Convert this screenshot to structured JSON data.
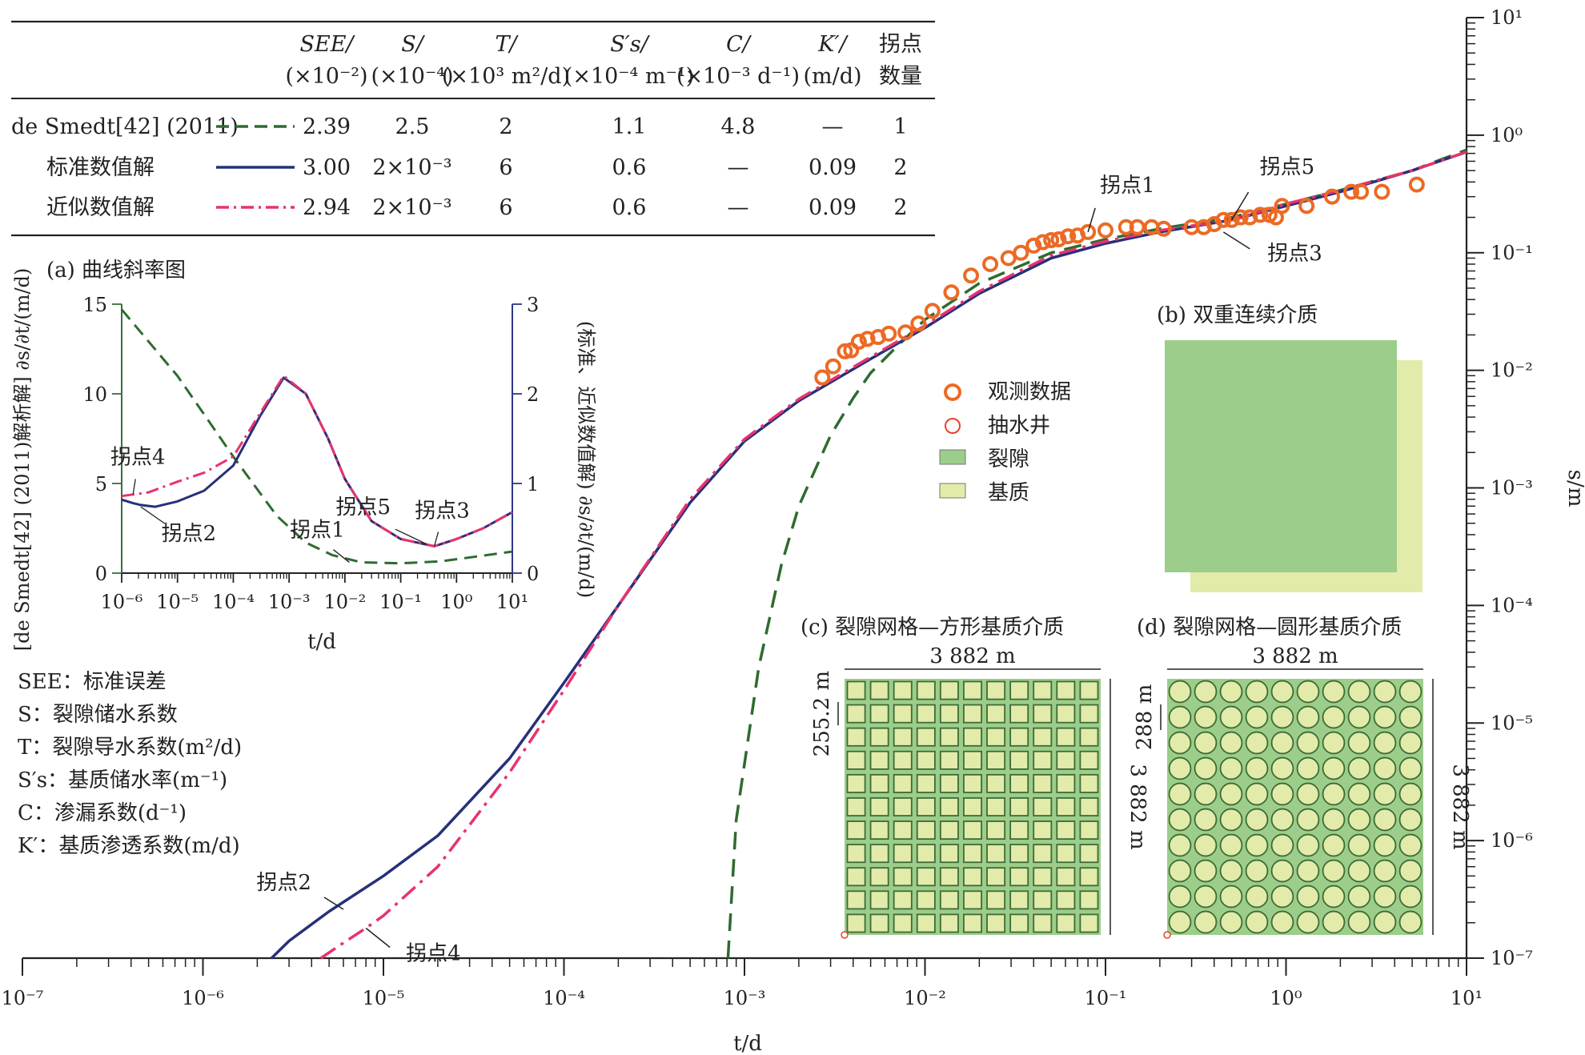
{
  "colors": {
    "desmedt": "#2e6b30",
    "standard": "#27307a",
    "approx": "#e8326e",
    "observed": "#ec6a24",
    "well": "#e8422a",
    "fracture": "#9ccd8a",
    "matrix": "#e3ebaa",
    "red_text": "#d8262b",
    "left_axis": "#3b6e3a",
    "right_axis": "#2d3785"
  },
  "table": {
    "headers": [
      {
        "l1": "SEE/",
        "l2": "(×10⁻²)"
      },
      {
        "l1": "S/",
        "l2": "(×10⁻⁴)"
      },
      {
        "l1": "T/",
        "l2": "(×10³ m²/d)"
      },
      {
        "l1": "S′s/",
        "l2": "(×10⁻⁴ m⁻¹)"
      },
      {
        "l1": "C/",
        "l2": "(×10⁻³ d⁻¹)"
      },
      {
        "l1": "K′/",
        "l2": "(m/d)"
      },
      {
        "l1": "拐点",
        "l2": "数量"
      }
    ],
    "rows": [
      {
        "name": "de Smedt[42] (2011)",
        "cells": [
          "2.39",
          "2.5",
          "2",
          "1.1",
          "4.8",
          "—",
          "1"
        ]
      },
      {
        "name": "标准数值解",
        "cells": [
          "3.00",
          "2×10⁻³",
          "6",
          "0.6",
          "—",
          "0.09",
          "2"
        ]
      },
      {
        "name": "近似数值解",
        "cells": [
          "2.94",
          "2×10⁻³",
          "6",
          "0.6",
          "—",
          "0.09",
          "2"
        ]
      }
    ]
  },
  "chart_data": [
    {
      "id": "main",
      "type": "line",
      "x_scale": "log",
      "y_scale": "log",
      "xlabel": "t/d",
      "ylabel": "s/m",
      "xlim": [
        1e-07,
        10
      ],
      "ylim": [
        1e-07,
        10
      ],
      "x_ticks": [
        "10⁻⁷",
        "10⁻⁶",
        "10⁻⁵",
        "10⁻⁴",
        "10⁻³",
        "10⁻²",
        "10⁻¹",
        "10⁰",
        "10¹"
      ],
      "y_ticks": [
        "10⁻⁷",
        "10⁻⁶",
        "10⁻⁵",
        "10⁻⁴",
        "10⁻³",
        "10⁻²",
        "10⁻¹",
        "10⁰",
        "10¹"
      ],
      "series": [
        {
          "name": "de Smedt[42] (2011)",
          "style": "dashed",
          "x": [
            0.00081,
            0.0009,
            0.0012,
            0.0016,
            0.002,
            0.003,
            0.004,
            0.005,
            0.007,
            0.01,
            0.02,
            0.05,
            0.1,
            0.2,
            0.5,
            1,
            2,
            5,
            10
          ],
          "y": [
            1e-07,
            1.5e-06,
            3e-05,
            0.00022,
            0.0007,
            0.0028,
            0.0058,
            0.0095,
            0.016,
            0.027,
            0.055,
            0.1,
            0.13,
            0.16,
            0.2,
            0.26,
            0.34,
            0.5,
            0.75
          ]
        },
        {
          "name": "标准数值解",
          "style": "solid",
          "x": [
            2.4e-06,
            3e-06,
            5e-06,
            1e-05,
            2e-05,
            5e-05,
            0.0001,
            0.0002,
            0.0005,
            0.001,
            0.002,
            0.005,
            0.01,
            0.02,
            0.05,
            0.1,
            0.2,
            0.5,
            1,
            2,
            5,
            10
          ],
          "y": [
            1e-07,
            1.4e-07,
            2.5e-07,
            5e-07,
            1.1e-06,
            5e-06,
            2.2e-05,
            0.0001,
            0.00075,
            0.0025,
            0.0055,
            0.0125,
            0.023,
            0.045,
            0.09,
            0.12,
            0.15,
            0.19,
            0.25,
            0.33,
            0.5,
            0.72
          ]
        },
        {
          "name": "近似数值解",
          "style": "dashdot",
          "x": [
            4.5e-06,
            6e-06,
            8e-06,
            1e-05,
            2e-05,
            5e-05,
            0.0001,
            0.0002,
            0.0005,
            0.001,
            0.002,
            0.005,
            0.01,
            0.02,
            0.05,
            0.1,
            0.2,
            0.5,
            1,
            2,
            5,
            10
          ],
          "y": [
            1e-07,
            1.35e-07,
            1.8e-07,
            2.3e-07,
            6e-07,
            3.8e-06,
            1.9e-05,
            0.0001,
            0.0008,
            0.0026,
            0.0057,
            0.013,
            0.024,
            0.047,
            0.095,
            0.125,
            0.155,
            0.19,
            0.26,
            0.34,
            0.5,
            0.72
          ]
        },
        {
          "name": "观测数据",
          "style": "markers",
          "x": [
            0.0027,
            0.0031,
            0.0036,
            0.0039,
            0.0043,
            0.0048,
            0.0055,
            0.0063,
            0.0078,
            0.0092,
            0.011,
            0.014,
            0.018,
            0.023,
            0.029,
            0.034,
            0.04,
            0.045,
            0.05,
            0.055,
            0.062,
            0.07,
            0.08,
            0.1,
            0.13,
            0.15,
            0.18,
            0.21,
            0.3,
            0.35,
            0.4,
            0.45,
            0.5,
            0.56,
            0.63,
            0.72,
            0.81,
            0.88,
            0.95,
            1.3,
            1.8,
            2.3,
            2.6,
            3.4,
            5.3
          ],
          "y": [
            0.0087,
            0.0108,
            0.0145,
            0.0148,
            0.0175,
            0.0185,
            0.0192,
            0.0205,
            0.021,
            0.025,
            0.032,
            0.046,
            0.064,
            0.08,
            0.09,
            0.1,
            0.115,
            0.123,
            0.128,
            0.13,
            0.138,
            0.14,
            0.15,
            0.155,
            0.165,
            0.165,
            0.165,
            0.16,
            0.165,
            0.165,
            0.175,
            0.19,
            0.19,
            0.2,
            0.2,
            0.21,
            0.21,
            0.2,
            0.25,
            0.25,
            0.3,
            0.33,
            0.33,
            0.33,
            0.38
          ]
        }
      ],
      "annotations": [
        {
          "text": "拐点1",
          "x": 0.08,
          "y": 0.15
        },
        {
          "text": "拐点5",
          "x": 0.5,
          "y": 0.19
        },
        {
          "text": "拐点3",
          "x": 0.45,
          "y": 0.15
        },
        {
          "text": "拐点2",
          "x": 6e-06,
          "y": 2.6e-07
        },
        {
          "text": "拐点4",
          "x": 8e-06,
          "y": 1.8e-07
        }
      ]
    },
    {
      "id": "inset-a",
      "type": "line",
      "title": "(a) 曲线斜率图",
      "x_scale": "log",
      "xlabel": "t/d",
      "ylabel_left": "[de Smedt[42] (2011)解析解] ∂s/∂t/(m/d)",
      "ylabel_right": "(标准、近似数值解) ∂s/∂t/(m/d)",
      "xlim": [
        1e-06,
        10
      ],
      "ylim_left": [
        0,
        15
      ],
      "ylim_right": [
        0,
        3
      ],
      "x_ticks": [
        "10⁻⁶",
        "10⁻⁵",
        "10⁻⁴",
        "10⁻³",
        "10⁻²",
        "10⁻¹",
        "10⁰",
        "10¹"
      ],
      "y_ticks_left": [
        "0",
        "5",
        "10",
        "15"
      ],
      "y_ticks_right": [
        "0",
        "1",
        "2",
        "3"
      ],
      "series": [
        {
          "name": "de Smedt[42] (2011)",
          "style": "dashed",
          "axis": "left",
          "x": [
            1e-06,
            1e-05,
            0.0001,
            0.0006,
            0.002,
            0.006,
            0.02,
            0.1,
            0.5,
            2,
            10
          ],
          "y": [
            14.7,
            11,
            6.5,
            3.2,
            1.7,
            1.0,
            0.6,
            0.55,
            0.65,
            0.9,
            1.2
          ]
        },
        {
          "name": "标准数值解",
          "style": "solid",
          "axis": "right",
          "x": [
            1e-06,
            1.6e-06,
            2.2e-06,
            4e-06,
            1e-05,
            3e-05,
            0.0001,
            0.0003,
            0.0008,
            0.002,
            0.005,
            0.01,
            0.03,
            0.1,
            0.4,
            1,
            3,
            10
          ],
          "y": [
            0.82,
            0.78,
            0.76,
            0.74,
            0.8,
            0.92,
            1.2,
            1.75,
            2.18,
            2.0,
            1.5,
            1.05,
            0.58,
            0.38,
            0.3,
            0.38,
            0.5,
            0.68
          ]
        },
        {
          "name": "近似数值解",
          "style": "dashdot",
          "axis": "right",
          "x": [
            1e-06,
            3e-06,
            1e-05,
            3e-05,
            0.0001,
            0.0003,
            0.0008,
            0.002,
            0.005,
            0.01,
            0.03,
            0.1,
            0.4,
            1,
            3,
            10
          ],
          "y": [
            0.86,
            0.9,
            1.02,
            1.12,
            1.3,
            1.78,
            2.2,
            2.0,
            1.5,
            1.05,
            0.58,
            0.38,
            0.3,
            0.38,
            0.5,
            0.68
          ]
        }
      ],
      "annotations": [
        {
          "text": "拐点4",
          "x": 1.6e-06,
          "y_right": 0.88
        },
        {
          "text": "拐点2",
          "x": 2.2e-06,
          "y_right": 0.74
        },
        {
          "text": "拐点1",
          "x": 0.012,
          "y_left": 0.6
        },
        {
          "text": "拐点5",
          "x": 0.3,
          "y_right": 0.32
        },
        {
          "text": "拐点3",
          "x": 0.4,
          "y_right": 0.3
        }
      ]
    }
  ],
  "legend": {
    "items": [
      {
        "key": "observed",
        "label": "观测数据"
      },
      {
        "key": "well",
        "label": "抽水井"
      },
      {
        "key": "fracture",
        "label": "裂隙"
      },
      {
        "key": "matrix",
        "label": "基质"
      }
    ]
  },
  "inset_b": {
    "title": "(b) 双重连续介质"
  },
  "inset_c": {
    "title": "(c) 裂隙网格—方形基质介质",
    "width_label": "3 882 m",
    "height_label": "3 882 m",
    "cell_label": "255.2 m",
    "grid_n": 11
  },
  "inset_d": {
    "title": "(d) 裂隙网格—圆形基质介质",
    "width_label": "3 882 m",
    "height_label": "3 882 m",
    "cell_label": "288 m",
    "grid_n": 10
  },
  "glossary": [
    "SEE：标准误差",
    "S：裂隙储水系数",
    "T：裂隙导水系数(m²/d)",
    "S′s：基质储水率(m⁻¹)",
    "C：渗漏系数(d⁻¹)",
    "K′：基质渗透系数(m/d)"
  ]
}
